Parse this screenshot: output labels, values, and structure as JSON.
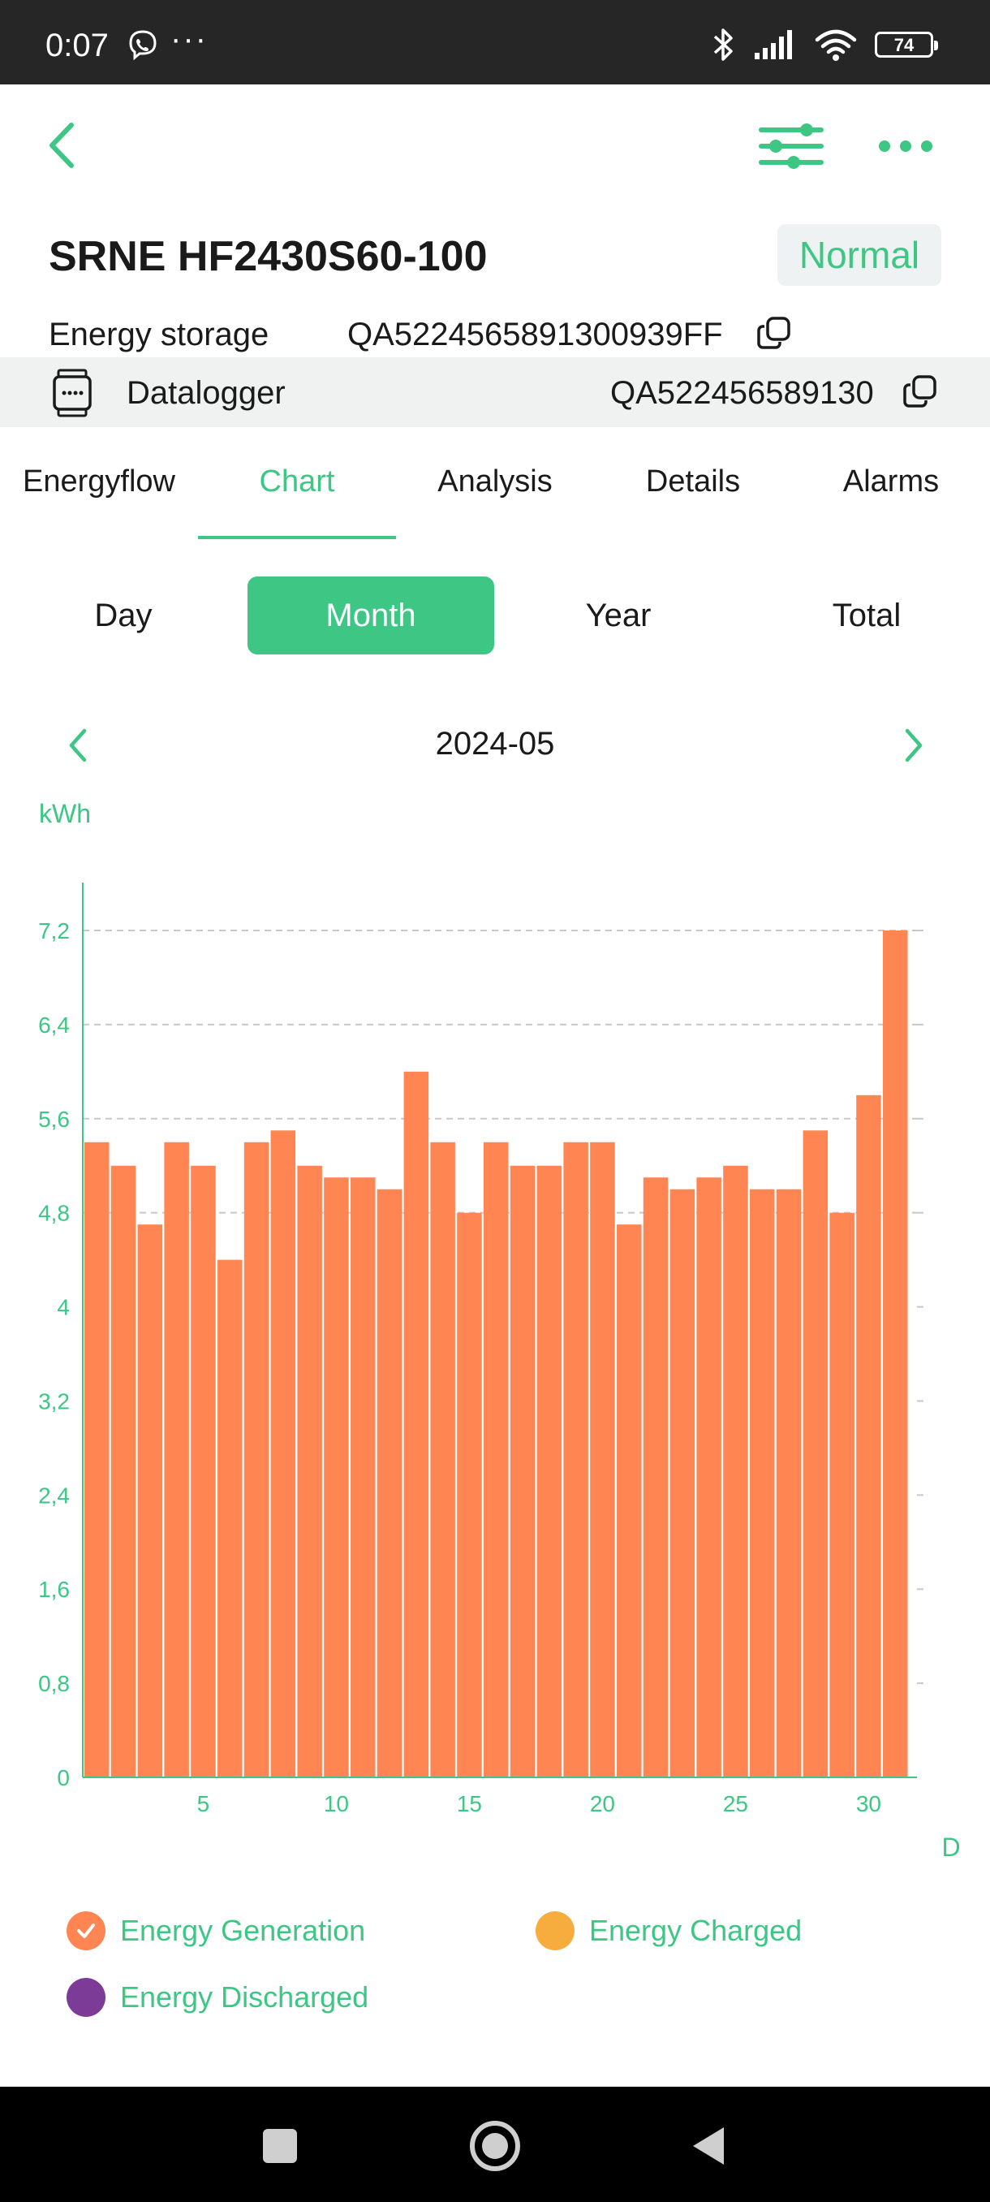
{
  "status_bar": {
    "time": "0:07",
    "dots": "···",
    "battery": "74"
  },
  "header": {
    "back_icon": "chevron-left-icon",
    "filter_icon": "sliders-icon",
    "more_icon": "more-dots-icon"
  },
  "device": {
    "title": "SRNE HF2430S60-100",
    "status": "Normal",
    "storage_label": "Energy storage",
    "storage_sn": "QA5224565891300939FF",
    "logger_label": "Datalogger",
    "logger_sn": "QA522456589130"
  },
  "tabs": [
    {
      "label": "Energyflow"
    },
    {
      "label": "Chart"
    },
    {
      "label": "Analysis"
    },
    {
      "label": "Details"
    },
    {
      "label": "Alarms"
    }
  ],
  "segments": [
    {
      "label": "Day"
    },
    {
      "label": "Month"
    },
    {
      "label": "Year"
    },
    {
      "label": "Total"
    }
  ],
  "date_nav": {
    "current": "2024-05"
  },
  "colors": {
    "accent": "#3dc684",
    "bar": "#ff8552",
    "charged": "#f7ac3e",
    "discharged": "#7b3b96"
  },
  "chart_data": {
    "type": "bar",
    "unit_label": "kWh",
    "x_axis_label": "D",
    "x": [
      1,
      2,
      3,
      4,
      5,
      6,
      7,
      8,
      9,
      10,
      11,
      12,
      13,
      14,
      15,
      16,
      17,
      18,
      19,
      20,
      21,
      22,
      23,
      24,
      25,
      26,
      27,
      28,
      29,
      30,
      31
    ],
    "x_ticks": [
      5,
      10,
      15,
      20,
      25,
      30
    ],
    "y_ticks": [
      "0",
      "0,8",
      "1,6",
      "2,4",
      "3,2",
      "4",
      "4,8",
      "5,6",
      "6,4",
      "7,2"
    ],
    "y_tick_values": [
      0,
      0.8,
      1.6,
      2.4,
      3.2,
      4,
      4.8,
      5.6,
      6.4,
      7.2
    ],
    "ylim": [
      0,
      7.6
    ],
    "gridlines_dashed_at": [
      4.8,
      5.6,
      6.4,
      7.2
    ],
    "series": [
      {
        "name": "Energy Generation",
        "values": [
          5.4,
          5.2,
          4.7,
          5.4,
          5.2,
          4.4,
          5.4,
          5.5,
          5.2,
          5.1,
          5.1,
          5.0,
          6.0,
          5.4,
          4.8,
          5.4,
          5.2,
          5.2,
          5.4,
          5.4,
          4.7,
          5.1,
          5.0,
          5.1,
          5.2,
          5.0,
          5.0,
          5.5,
          4.8,
          5.8,
          7.2
        ]
      }
    ]
  },
  "legend": [
    {
      "label": "Energy Generation",
      "checked": true
    },
    {
      "label": "Energy Charged",
      "checked": false
    },
    {
      "label": "Energy Discharged",
      "checked": false
    }
  ]
}
